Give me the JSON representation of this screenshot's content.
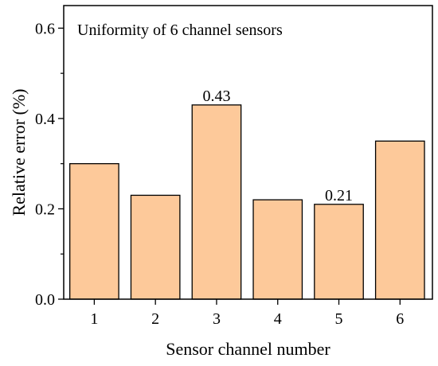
{
  "chart_data": {
    "type": "bar",
    "title": "Uniformity of 6 channel sensors",
    "xlabel": "Sensor channel number",
    "ylabel": "Relative error (%)",
    "categories": [
      "1",
      "2",
      "3",
      "4",
      "5",
      "6"
    ],
    "values": [
      0.3,
      0.23,
      0.43,
      0.22,
      0.21,
      0.35
    ],
    "data_labels": [
      {
        "category": "3",
        "text": "0.43"
      },
      {
        "category": "5",
        "text": "0.21"
      }
    ],
    "ylim": [
      0,
      0.65
    ],
    "yticks": [
      {
        "value": 0.0,
        "label": "0.0"
      },
      {
        "value": 0.2,
        "label": "0.2"
      },
      {
        "value": 0.4,
        "label": "0.4"
      },
      {
        "value": 0.6,
        "label": "0.6"
      }
    ],
    "grid": false,
    "legend": "none",
    "colors": {
      "bar_fill": "#FDC99A",
      "bar_stroke": "#000000"
    }
  }
}
